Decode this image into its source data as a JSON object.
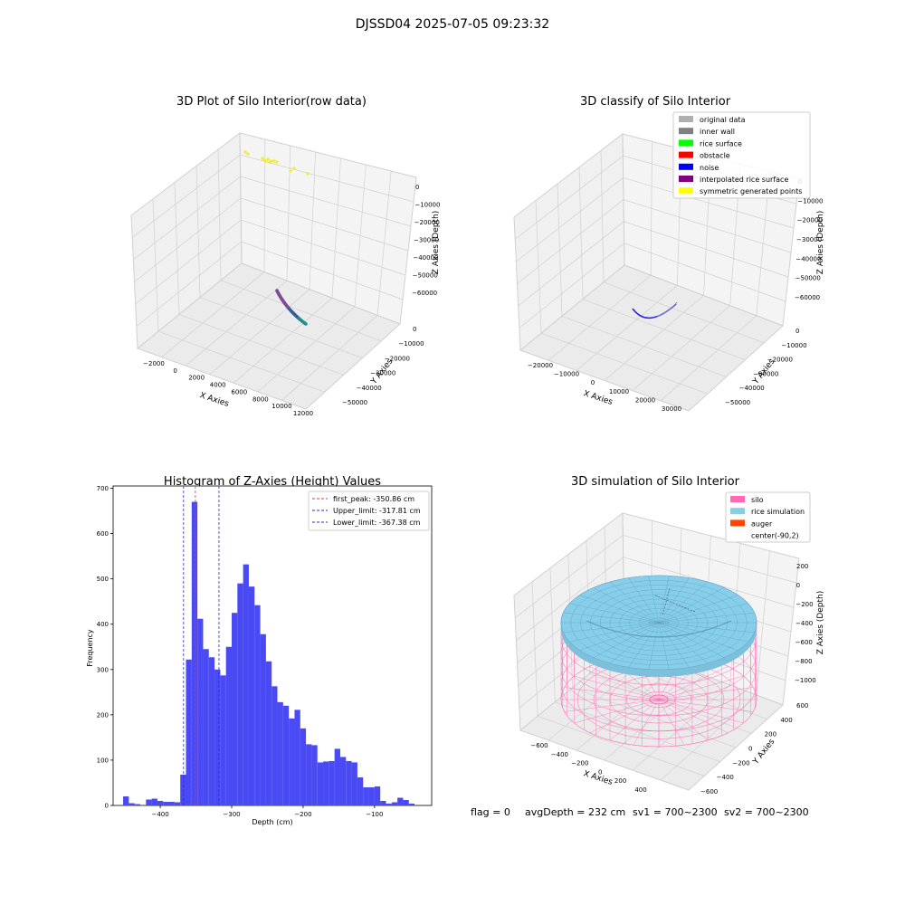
{
  "figure": {
    "suptitle": "DJSSD04 2025-07-05 09:23:32",
    "status_line": {
      "flag": "flag = 0",
      "avg_depth": "avgDepth = 232 cm",
      "sv1": "sv1 = 700~2300",
      "sv2": "sv2 = 700~2300"
    }
  },
  "colors": {
    "hist_bar": "#4a4af5",
    "first_peak": "#e8383b",
    "limits": "#2a2ad0",
    "silo": "#ff69b4",
    "rice": "#87ceeb",
    "auger": "#ff4500"
  },
  "chart_data": [
    {
      "type": "scatter",
      "projection": "3d",
      "title": "3D Plot of Silo Interior(row data)",
      "xlabel": "X Axies",
      "ylabel": "Y Axies",
      "zlabel": "Z Axies (Depth)",
      "x_ticks": [
        "−2000",
        "0",
        "2000",
        "4000",
        "6000",
        "8000",
        "10000",
        "12000"
      ],
      "y_ticks": [
        "0",
        "−10000",
        "−20000",
        "−30000",
        "−40000",
        "−50000"
      ],
      "z_ticks": [
        "0",
        "−10000",
        "−20000",
        "−30000",
        "−40000",
        "−50000",
        "−60000"
      ],
      "grid": true
    },
    {
      "type": "scatter",
      "projection": "3d",
      "title": "3D classify of Silo Interior",
      "xlabel": "X Axies",
      "ylabel": "Y Axies",
      "zlabel": "Z Axies (Depth)",
      "x_ticks": [
        "−20000",
        "−10000",
        "0",
        "10000",
        "20000",
        "30000"
      ],
      "y_ticks": [
        "0",
        "−10000",
        "−20000",
        "−30000",
        "−40000",
        "−50000"
      ],
      "z_ticks": [
        "0",
        "−10000",
        "−20000",
        "−30000",
        "−40000",
        "−50000",
        "−60000"
      ],
      "legend_position": "top-right",
      "legend": [
        {
          "label": "original data",
          "color": "#b0b0b0"
        },
        {
          "label": "inner wall",
          "color": "#808080"
        },
        {
          "label": "rice surface",
          "color": "#00ff00"
        },
        {
          "label": "obstacle",
          "color": "#ff0000"
        },
        {
          "label": "noise",
          "color": "#0000ff"
        },
        {
          "label": "interpolated rice surface",
          "color": "#800080"
        },
        {
          "label": "symmetric generated points",
          "color": "#ffff00"
        }
      ],
      "grid": true
    },
    {
      "type": "bar",
      "title": "Histogram of Z-Axies (Height) Values",
      "xlabel": "Depth (cm)",
      "ylabel": "Frequency",
      "xlim": [
        -466,
        -20
      ],
      "ylim": [
        0,
        705
      ],
      "x_ticks": [
        -400,
        -300,
        -200,
        -100
      ],
      "y_ticks": [
        0,
        100,
        200,
        300,
        400,
        500,
        600,
        700
      ],
      "bin_width": 8,
      "bins": [
        [
          -452,
          20
        ],
        [
          -444,
          5
        ],
        [
          -436,
          3
        ],
        [
          -420,
          13
        ],
        [
          -412,
          15
        ],
        [
          -404,
          10
        ],
        [
          -396,
          8
        ],
        [
          -388,
          8
        ],
        [
          -380,
          7
        ],
        [
          -372,
          68
        ],
        [
          -364,
          322
        ],
        [
          -356,
          670
        ],
        [
          -348,
          412
        ],
        [
          -340,
          345
        ],
        [
          -332,
          327
        ],
        [
          -324,
          300
        ],
        [
          -316,
          287
        ],
        [
          -308,
          350
        ],
        [
          -300,
          425
        ],
        [
          -292,
          490
        ],
        [
          -284,
          532
        ],
        [
          -276,
          483
        ],
        [
          -268,
          442
        ],
        [
          -260,
          378
        ],
        [
          -252,
          318
        ],
        [
          -244,
          263
        ],
        [
          -236,
          228
        ],
        [
          -228,
          220
        ],
        [
          -220,
          192
        ],
        [
          -212,
          211
        ],
        [
          -204,
          170
        ],
        [
          -196,
          135
        ],
        [
          -188,
          133
        ],
        [
          -180,
          95
        ],
        [
          -172,
          97
        ],
        [
          -164,
          98
        ],
        [
          -156,
          125
        ],
        [
          -148,
          107
        ],
        [
          -140,
          98
        ],
        [
          -132,
          95
        ],
        [
          -124,
          62
        ],
        [
          -116,
          40
        ],
        [
          -108,
          40
        ],
        [
          -100,
          42
        ],
        [
          -92,
          10
        ],
        [
          -84,
          4
        ],
        [
          -76,
          7
        ],
        [
          -68,
          17
        ],
        [
          -60,
          12
        ],
        [
          -52,
          4
        ]
      ],
      "lines": [
        {
          "label": "first_peak: -350.86 cm",
          "x": -350.86,
          "color": "#e8383b"
        },
        {
          "label": "Upper_limit: -317.81 cm",
          "x": -317.81,
          "color": "#2a2ad0"
        },
        {
          "label": "Lower_limit: -367.38 cm",
          "x": -367.38,
          "color": "#2a2ad0"
        }
      ],
      "legend_position": "top-right"
    },
    {
      "type": "surface",
      "projection": "3d",
      "title": "3D simulation of Silo Interior",
      "xlabel": "X Axies",
      "ylabel": "Y Axies",
      "zlabel": "Z Axies (Depth)",
      "x_ticks": [
        "−600",
        "−400",
        "−200",
        "0",
        "200",
        "400"
      ],
      "y_ticks": [
        "−600",
        "−400",
        "−200",
        "0",
        "200",
        "400",
        "600"
      ],
      "z_ticks": [
        "200",
        "0",
        "−200",
        "−400",
        "−600",
        "−800",
        "−1000"
      ],
      "legend_position": "top-right",
      "legend": [
        {
          "label": "silo",
          "color": "#ff69b4"
        },
        {
          "label": "rice simulation",
          "color": "#87ceeb"
        },
        {
          "label": "auger",
          "color": "#ff4500"
        },
        {
          "label": "center(-90,2)",
          "color": "none"
        }
      ],
      "grid": true
    }
  ]
}
